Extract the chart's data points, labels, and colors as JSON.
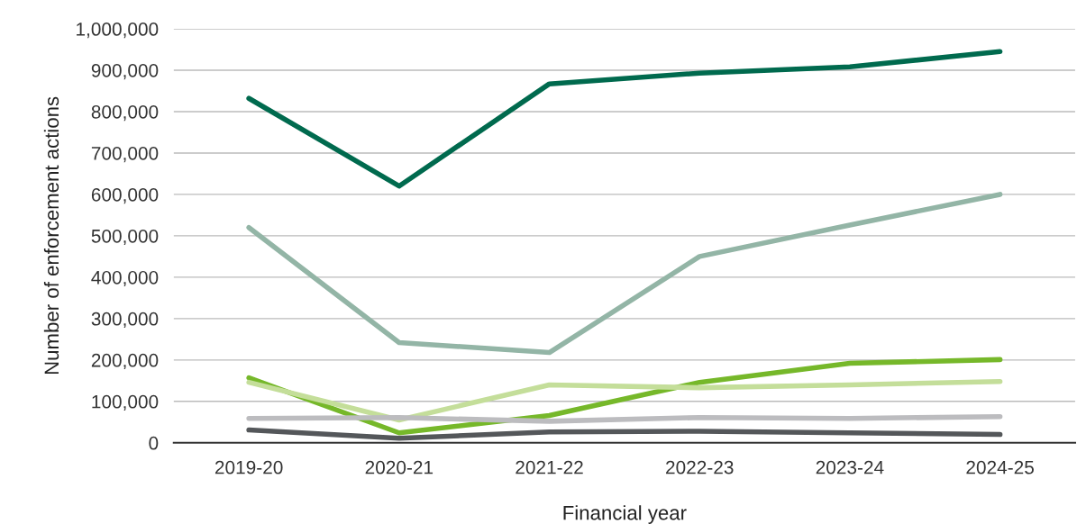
{
  "chart_data": {
    "type": "line",
    "xlabel": "Financial year",
    "ylabel": "Number of enforcement actions",
    "categories": [
      "2019-20",
      "2020-21",
      "2021-22",
      "2022-23",
      "2023-24",
      "2024-25"
    ],
    "series": [
      {
        "color": "#006a4e",
        "values": [
          832000,
          620000,
          867000,
          893000,
          908000,
          945000
        ]
      },
      {
        "color": "#93b5a6",
        "values": [
          520000,
          242000,
          218000,
          450000,
          526000,
          600000
        ]
      },
      {
        "color": "#76b82a",
        "values": [
          157000,
          24000,
          66000,
          146000,
          192000,
          201000
        ]
      },
      {
        "color": "#c4de9a",
        "values": [
          146000,
          55000,
          140000,
          133000,
          140000,
          148000
        ]
      },
      {
        "color": "#bcbcbf",
        "values": [
          59000,
          61000,
          52000,
          61000,
          59000,
          63000
        ]
      },
      {
        "color": "#54575a",
        "values": [
          31000,
          11000,
          26000,
          28000,
          24000,
          20000
        ]
      }
    ],
    "ylim": [
      0,
      1000000
    ],
    "yticks": [
      {
        "value": 0,
        "label": "0"
      },
      {
        "value": 100000,
        "label": "100,000"
      },
      {
        "value": 200000,
        "label": "200,000"
      },
      {
        "value": 300000,
        "label": "300,000"
      },
      {
        "value": 400000,
        "label": "400,000"
      },
      {
        "value": 500000,
        "label": "500,000"
      },
      {
        "value": 600000,
        "label": "600,000"
      },
      {
        "value": 700000,
        "label": "700,000"
      },
      {
        "value": 800000,
        "label": "800,000"
      },
      {
        "value": 900000,
        "label": "900,000"
      },
      {
        "value": 1000000,
        "label": "1,000,000"
      }
    ],
    "grid": "y",
    "marker": "none",
    "line_style": "solid"
  }
}
